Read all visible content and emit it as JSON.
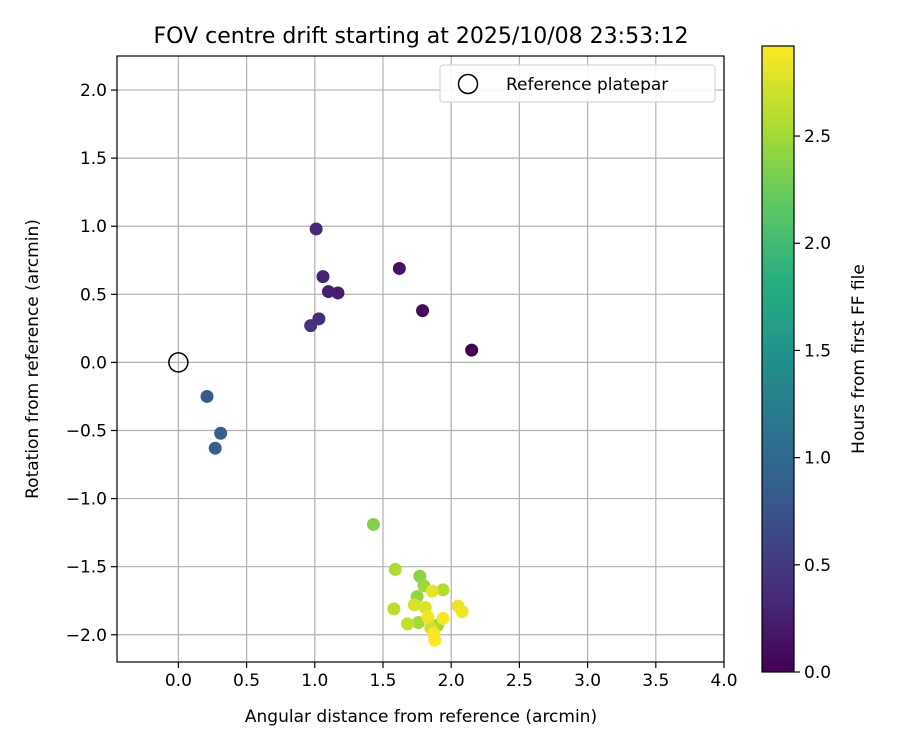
{
  "chart_data": {
    "type": "scatter",
    "title": "FOV centre drift starting at 2025/10/08 23:53:12",
    "xlabel": "Angular distance from reference (arcmin)",
    "ylabel": "Rotation from reference (arcmin)",
    "xlim": [
      -0.45,
      4.0
    ],
    "ylim": [
      -2.2,
      2.25
    ],
    "xticks": [
      0.0,
      0.5,
      1.0,
      1.5,
      2.0,
      2.5,
      3.0,
      3.5,
      4.0
    ],
    "xtick_labels": [
      "0.0",
      "0.5",
      "1.0",
      "1.5",
      "2.0",
      "2.5",
      "3.0",
      "3.5",
      "4.0"
    ],
    "yticks": [
      -2.0,
      -1.5,
      -1.0,
      -0.5,
      0.0,
      0.5,
      1.0,
      1.5,
      2.0
    ],
    "ytick_labels": [
      "−2.0",
      "−1.5",
      "−1.0",
      "−0.5",
      "0.0",
      "0.5",
      "1.0",
      "1.5",
      "2.0"
    ],
    "grid": true,
    "legend": {
      "position": "top-right",
      "entries": [
        {
          "label": "Reference platepar",
          "marker": "open-circle"
        }
      ]
    },
    "reference_point": {
      "x": 0.0,
      "y": 0.0
    },
    "colorbar": {
      "label": "Hours from first FF file",
      "colormap": "viridis",
      "range": [
        0.0,
        2.92
      ],
      "ticks": [
        0.0,
        0.5,
        1.0,
        1.5,
        2.0,
        2.5
      ],
      "tick_labels": [
        "0.0",
        "0.5",
        "1.0",
        "1.5",
        "2.0",
        "2.5"
      ]
    },
    "points": [
      {
        "x": 2.15,
        "y": 0.09,
        "hours": 0.0
      },
      {
        "x": 1.79,
        "y": 0.38,
        "hours": 0.08
      },
      {
        "x": 1.62,
        "y": 0.69,
        "hours": 0.15
      },
      {
        "x": 1.17,
        "y": 0.51,
        "hours": 0.22
      },
      {
        "x": 1.1,
        "y": 0.52,
        "hours": 0.26
      },
      {
        "x": 1.06,
        "y": 0.63,
        "hours": 0.29
      },
      {
        "x": 1.01,
        "y": 0.98,
        "hours": 0.33
      },
      {
        "x": 1.03,
        "y": 0.32,
        "hours": 0.36
      },
      {
        "x": 0.97,
        "y": 0.27,
        "hours": 0.4
      },
      {
        "x": 0.21,
        "y": -0.25,
        "hours": 0.82
      },
      {
        "x": 0.31,
        "y": -0.52,
        "hours": 0.86
      },
      {
        "x": 0.27,
        "y": -0.63,
        "hours": 0.88
      },
      {
        "x": 1.43,
        "y": -1.19,
        "hours": 2.35
      },
      {
        "x": 1.77,
        "y": -1.57,
        "hours": 2.4
      },
      {
        "x": 1.75,
        "y": -1.72,
        "hours": 2.44
      },
      {
        "x": 1.8,
        "y": -1.64,
        "hours": 2.47
      },
      {
        "x": 1.76,
        "y": -1.91,
        "hours": 2.5
      },
      {
        "x": 1.9,
        "y": -1.93,
        "hours": 2.53
      },
      {
        "x": 1.59,
        "y": -1.52,
        "hours": 2.56
      },
      {
        "x": 1.94,
        "y": -1.67,
        "hours": 2.58
      },
      {
        "x": 1.58,
        "y": -1.81,
        "hours": 2.62
      },
      {
        "x": 1.68,
        "y": -1.92,
        "hours": 2.65
      },
      {
        "x": 1.85,
        "y": -1.95,
        "hours": 2.7
      },
      {
        "x": 1.73,
        "y": -1.78,
        "hours": 2.75
      },
      {
        "x": 1.81,
        "y": -1.8,
        "hours": 2.78
      },
      {
        "x": 1.86,
        "y": -1.68,
        "hours": 2.81
      },
      {
        "x": 2.05,
        "y": -1.79,
        "hours": 2.83
      },
      {
        "x": 2.08,
        "y": -1.83,
        "hours": 2.85
      },
      {
        "x": 1.83,
        "y": -1.87,
        "hours": 2.87
      },
      {
        "x": 1.94,
        "y": -1.88,
        "hours": 2.89
      },
      {
        "x": 1.87,
        "y": -1.99,
        "hours": 2.9
      },
      {
        "x": 1.88,
        "y": -2.04,
        "hours": 2.92
      }
    ]
  }
}
